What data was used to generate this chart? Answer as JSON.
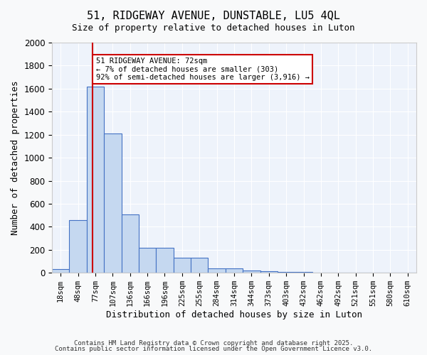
{
  "title_line1": "51, RIDGEWAY AVENUE, DUNSTABLE, LU5 4QL",
  "title_line2": "Size of property relative to detached houses in Luton",
  "xlabel": "Distribution of detached houses by size in Luton",
  "ylabel": "Number of detached properties",
  "bar_color": "#c5d8f0",
  "bar_edge_color": "#4472c4",
  "background_color": "#eef3fb",
  "grid_color": "#ffffff",
  "categories": [
    "18sqm",
    "48sqm",
    "77sqm",
    "107sqm",
    "136sqm",
    "166sqm",
    "196sqm",
    "225sqm",
    "255sqm",
    "284sqm",
    "314sqm",
    "344sqm",
    "373sqm",
    "403sqm",
    "432sqm",
    "462sqm",
    "492sqm",
    "521sqm",
    "551sqm",
    "580sqm",
    "610sqm"
  ],
  "values": [
    30,
    460,
    1620,
    1210,
    510,
    220,
    220,
    130,
    130,
    40,
    40,
    20,
    15,
    10,
    5,
    3,
    2,
    1,
    1,
    0,
    0
  ],
  "ylim": [
    0,
    2000
  ],
  "yticks": [
    0,
    200,
    400,
    600,
    800,
    1000,
    1200,
    1400,
    1600,
    1800,
    2000
  ],
  "red_line_x": 1.72,
  "annotation_text": "51 RIDGEWAY AVENUE: 72sqm\n← 7% of detached houses are smaller (303)\n92% of semi-detached houses are larger (3,916) →",
  "annotation_box_color": "#ffffff",
  "annotation_box_edge": "#cc0000",
  "footnote1": "Contains HM Land Registry data © Crown copyright and database right 2025.",
  "footnote2": "Contains public sector information licensed under the Open Government Licence v3.0."
}
